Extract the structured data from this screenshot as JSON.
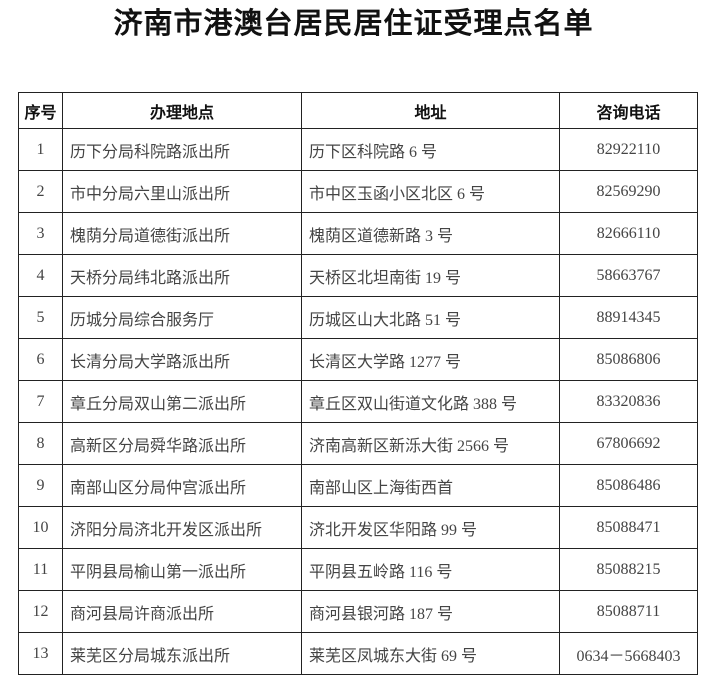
{
  "title": "济南市港澳台居民居住证受理点名单",
  "table": {
    "headers": [
      "序号",
      "办理地点",
      "地址",
      "咨询电话"
    ],
    "rows": [
      [
        "1",
        "历下分局科院路派出所",
        "历下区科院路 6 号",
        "82922110"
      ],
      [
        "2",
        "市中分局六里山派出所",
        "市中区玉函小区北区 6 号",
        "82569290"
      ],
      [
        "3",
        "槐荫分局道德街派出所",
        "槐荫区道德新路 3 号",
        "82666110"
      ],
      [
        "4",
        "天桥分局纬北路派出所",
        "天桥区北坦南街 19 号",
        "58663767"
      ],
      [
        "5",
        "历城分局综合服务厅",
        "历城区山大北路 51 号",
        "88914345"
      ],
      [
        "6",
        "长清分局大学路派出所",
        "长清区大学路 1277 号",
        "85086806"
      ],
      [
        "7",
        "章丘分局双山第二派出所",
        "章丘区双山街道文化路 388 号",
        "83320836"
      ],
      [
        "8",
        "高新区分局舜华路派出所",
        "济南高新区新泺大街 2566 号",
        "67806692"
      ],
      [
        "9",
        "南部山区分局仲宫派出所",
        "南部山区上海街西首",
        "85086486"
      ],
      [
        "10",
        "济阳分局济北开发区派出所",
        "济北开发区华阳路 99 号",
        "85088471"
      ],
      [
        "11",
        "平阴县局榆山第一派出所",
        "平阴县五岭路 116 号",
        "85088215"
      ],
      [
        "12",
        "商河县局许商派出所",
        "商河县银河路 187 号",
        "85088711"
      ],
      [
        "13",
        "莱芜区分局城东派出所",
        "莱芜区凤城东大街 69 号",
        "0634－5668403"
      ]
    ]
  }
}
